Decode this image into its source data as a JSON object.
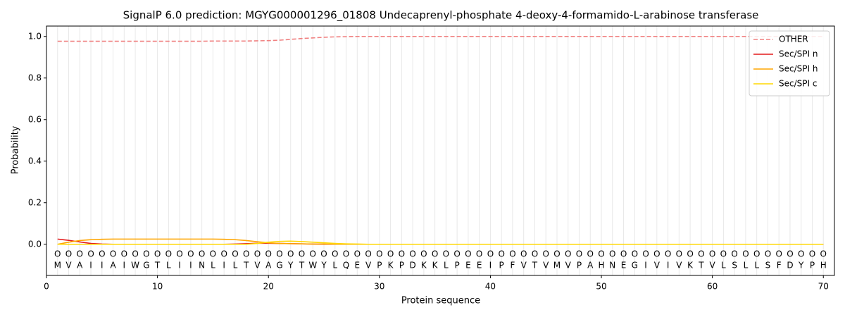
{
  "chart_data": {
    "type": "line",
    "title": "SignalP 6.0 prediction: MGYG000001296_01808 Undecaprenyl-phosphate 4-deoxy-4-formamido-L-arabinose transferase",
    "x_label": "Protein sequence",
    "y_label": "Probability",
    "x": [
      1,
      2,
      3,
      4,
      5,
      6,
      7,
      8,
      9,
      10,
      11,
      12,
      13,
      14,
      15,
      16,
      17,
      18,
      19,
      20,
      21,
      22,
      23,
      24,
      25,
      26,
      27,
      28,
      29,
      30,
      31,
      32,
      33,
      34,
      35,
      36,
      37,
      38,
      39,
      40,
      41,
      42,
      43,
      44,
      45,
      46,
      47,
      48,
      49,
      50,
      51,
      52,
      53,
      54,
      55,
      56,
      57,
      58,
      59,
      60,
      61,
      62,
      63,
      64,
      65,
      66,
      67,
      68,
      69,
      70
    ],
    "sequence": [
      "M",
      "V",
      "A",
      "I",
      "I",
      "A",
      "I",
      "W",
      "G",
      "T",
      "L",
      "I",
      "I",
      "N",
      "L",
      "I",
      "L",
      "T",
      "V",
      "A",
      "G",
      "Y",
      "T",
      "W",
      "Y",
      "L",
      "Q",
      "E",
      "V",
      "P",
      "K",
      "P",
      "D",
      "K",
      "K",
      "L",
      "P",
      "E",
      "E",
      "I",
      "P",
      "F",
      "V",
      "T",
      "V",
      "M",
      "V",
      "P",
      "A",
      "H",
      "N",
      "E",
      "G",
      "I",
      "V",
      "I",
      "V",
      "K",
      "T",
      "V",
      "L",
      "S",
      "L",
      "L",
      "S",
      "F",
      "D",
      "Y",
      "P",
      "H"
    ],
    "predicted": [
      "O",
      "O",
      "O",
      "O",
      "O",
      "O",
      "O",
      "O",
      "O",
      "O",
      "O",
      "O",
      "O",
      "O",
      "O",
      "O",
      "O",
      "O",
      "O",
      "O",
      "O",
      "O",
      "O",
      "O",
      "O",
      "O",
      "O",
      "O",
      "O",
      "O",
      "O",
      "O",
      "O",
      "O",
      "O",
      "O",
      "O",
      "O",
      "O",
      "O",
      "O",
      "O",
      "O",
      "O",
      "O",
      "O",
      "O",
      "O",
      "O",
      "O",
      "O",
      "O",
      "O",
      "O",
      "O",
      "O",
      "O",
      "O",
      "O",
      "O",
      "O",
      "O",
      "O",
      "O",
      "O",
      "O",
      "O",
      "O",
      "O",
      "O"
    ],
    "series": [
      {
        "name": "OTHER",
        "color": "#f08080",
        "style": "dashed",
        "values": [
          0.977,
          0.977,
          0.977,
          0.977,
          0.977,
          0.977,
          0.977,
          0.977,
          0.977,
          0.977,
          0.977,
          0.977,
          0.977,
          0.977,
          0.978,
          0.978,
          0.978,
          0.978,
          0.979,
          0.98,
          0.982,
          0.986,
          0.99,
          0.993,
          0.996,
          0.998,
          0.999,
          1.0,
          1.0,
          1.0,
          1.0,
          1.0,
          1.0,
          1.0,
          1.0,
          1.0,
          1.0,
          1.0,
          1.0,
          1.0,
          1.0,
          1.0,
          1.0,
          1.0,
          1.0,
          1.0,
          1.0,
          1.0,
          1.0,
          1.0,
          1.0,
          1.0,
          1.0,
          1.0,
          1.0,
          1.0,
          1.0,
          1.0,
          1.0,
          1.0,
          1.0,
          1.0,
          1.0,
          1.0,
          1.0,
          1.0,
          1.0,
          1.0,
          1.0,
          1.0
        ]
      },
      {
        "name": "Sec/SPI n",
        "color": "#e31a1c",
        "style": "solid",
        "values": [
          0.025,
          0.019,
          0.011,
          0.004,
          0.001,
          0,
          0,
          0,
          0,
          0,
          0,
          0,
          0,
          0,
          0,
          0,
          0.001,
          0.003,
          0.005,
          0.005,
          0.004,
          0.003,
          0.002,
          0.001,
          0,
          0,
          0,
          0,
          0,
          0,
          0,
          0,
          0,
          0,
          0,
          0,
          0,
          0,
          0,
          0,
          0,
          0,
          0,
          0,
          0,
          0,
          0,
          0,
          0,
          0,
          0,
          0,
          0,
          0,
          0,
          0,
          0,
          0,
          0,
          0,
          0,
          0,
          0,
          0,
          0,
          0,
          0,
          0,
          0,
          0
        ]
      },
      {
        "name": "Sec/SPI h",
        "color": "#ffa500",
        "style": "solid",
        "values": [
          0,
          0.01,
          0.018,
          0.022,
          0.024,
          0.025,
          0.025,
          0.025,
          0.025,
          0.025,
          0.025,
          0.025,
          0.025,
          0.025,
          0.025,
          0.024,
          0.022,
          0.018,
          0.012,
          0.007,
          0.004,
          0.003,
          0.002,
          0.001,
          0.001,
          0,
          0,
          0,
          0,
          0,
          0,
          0,
          0,
          0,
          0,
          0,
          0,
          0,
          0,
          0,
          0,
          0,
          0,
          0,
          0,
          0,
          0,
          0,
          0,
          0,
          0,
          0,
          0,
          0,
          0,
          0,
          0,
          0,
          0,
          0,
          0,
          0,
          0,
          0,
          0,
          0,
          0,
          0,
          0,
          0
        ]
      },
      {
        "name": "Sec/SPI c",
        "color": "#ffd700",
        "style": "solid",
        "values": [
          0,
          0,
          0,
          0,
          0,
          0,
          0,
          0,
          0,
          0,
          0,
          0,
          0,
          0,
          0,
          0,
          0,
          0,
          0.004,
          0.01,
          0.014,
          0.015,
          0.013,
          0.01,
          0.007,
          0.004,
          0.002,
          0.001,
          0,
          0,
          0,
          0,
          0,
          0,
          0,
          0,
          0,
          0,
          0,
          0,
          0,
          0,
          0,
          0,
          0,
          0,
          0,
          0,
          0,
          0,
          0,
          0,
          0,
          0,
          0,
          0,
          0,
          0,
          0,
          0,
          0,
          0,
          0,
          0,
          0,
          0,
          0,
          0,
          0,
          0
        ]
      }
    ],
    "xlim": [
      0,
      71
    ],
    "ylim": [
      -0.15,
      1.05
    ],
    "xticks": [
      0,
      10,
      20,
      30,
      40,
      50,
      60,
      70
    ],
    "yticks": [
      {
        "value": 0,
        "label": "0.0"
      },
      {
        "value": 0.2,
        "label": "0.2"
      },
      {
        "value": 0.4,
        "label": "0.4"
      },
      {
        "value": 0.6,
        "label": "0.6"
      },
      {
        "value": 0.8,
        "label": "0.8"
      },
      {
        "value": 1,
        "label": "1.0"
      }
    ],
    "grid": true,
    "legend": "upper right"
  }
}
